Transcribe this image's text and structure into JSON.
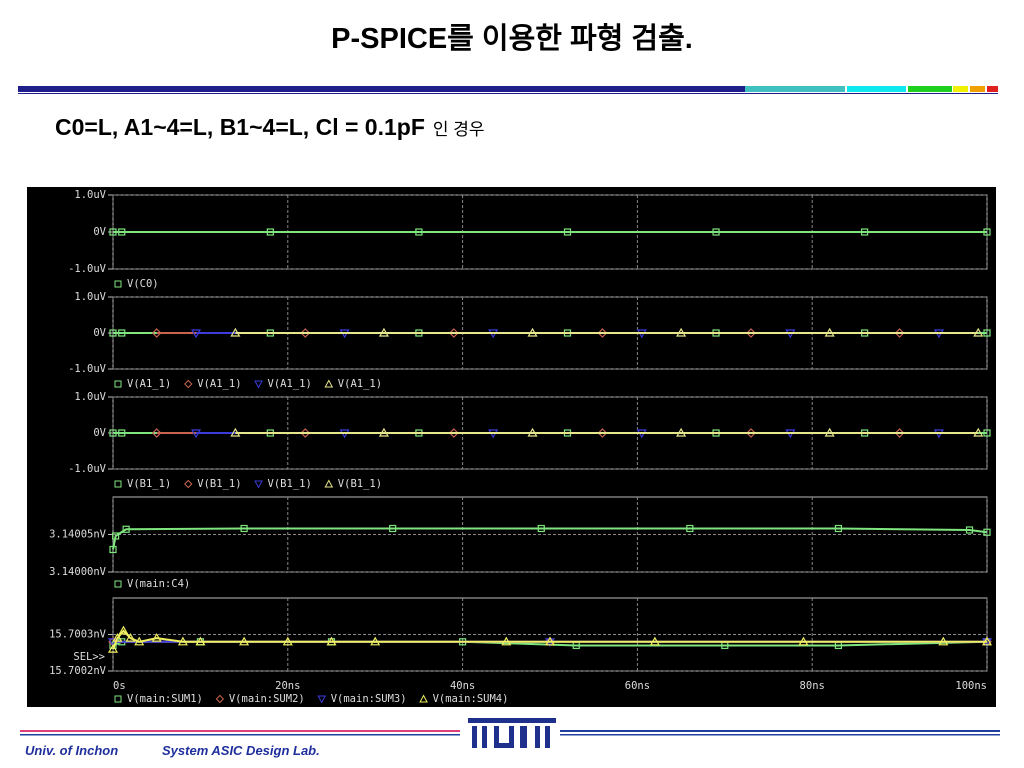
{
  "slide": {
    "title": "P-SPICE를 이용한 파형 검출.",
    "subtitle": "C0=L, A1~4=L, B1~4=L, Cl = 0.1pF",
    "subtitle_suffix": "인 경우",
    "footer_left": "Univ. of Inchon",
    "footer_right": "System ASIC Design Lab.",
    "select_label": "SEL>>"
  },
  "chart_data": [
    {
      "type": "line",
      "xlim": [
        0,
        100
      ],
      "xticks": [
        0,
        20,
        40,
        60,
        80,
        100
      ],
      "ylim": [
        -1e-06,
        1e-06
      ],
      "yticks": [
        {
          "value": 1e-06,
          "label": "1.0uV"
        },
        {
          "value": 0,
          "label": "0V"
        },
        {
          "value": -1e-06,
          "label": "-1.0uV"
        }
      ],
      "grid": true,
      "series": [
        {
          "name": "V(C0)",
          "color": "#7fe67f",
          "x": [
            0,
            1,
            18,
            35,
            52,
            69,
            86,
            100
          ],
          "values": [
            0,
            0,
            0,
            0,
            0,
            0,
            0,
            0
          ]
        }
      ]
    },
    {
      "type": "line",
      "xlim": [
        0,
        100
      ],
      "xticks": [
        0,
        20,
        40,
        60,
        80,
        100
      ],
      "ylim": [
        -1e-06,
        1e-06
      ],
      "yticks": [
        {
          "value": 1e-06,
          "label": "1.0uV"
        },
        {
          "value": 0,
          "label": "0V"
        },
        {
          "value": -1e-06,
          "label": "-1.0uV"
        }
      ],
      "grid": true,
      "series": [
        {
          "name": "V(A1_1)",
          "color": "#7fe67f",
          "x": [
            0,
            1,
            18,
            35,
            52,
            69,
            86,
            100
          ],
          "values": [
            0,
            0,
            0,
            0,
            0,
            0,
            0,
            0
          ]
        },
        {
          "name": "V(A1_1)",
          "color": "#c86450",
          "x": [
            5,
            22,
            39,
            56,
            73,
            90
          ],
          "values": [
            0,
            0,
            0,
            0,
            0,
            0
          ]
        },
        {
          "name": "V(A1_1)",
          "color": "#3c3cdc",
          "x": [
            9.5,
            26.5,
            43.5,
            60.5,
            77.5,
            94.5
          ],
          "values": [
            0,
            0,
            0,
            0,
            0,
            0
          ]
        },
        {
          "name": "V(A1_1)",
          "color": "#e6e68c",
          "x": [
            14,
            31,
            48,
            65,
            82,
            99
          ],
          "values": [
            0,
            0,
            0,
            0,
            0,
            0
          ]
        }
      ]
    },
    {
      "type": "line",
      "xlim": [
        0,
        100
      ],
      "xticks": [
        0,
        20,
        40,
        60,
        80,
        100
      ],
      "ylim": [
        -1e-06,
        1e-06
      ],
      "yticks": [
        {
          "value": 1e-06,
          "label": "1.0uV"
        },
        {
          "value": 0,
          "label": "0V"
        },
        {
          "value": -1e-06,
          "label": "-1.0uV"
        }
      ],
      "grid": true,
      "series": [
        {
          "name": "V(B1_1)",
          "color": "#7fe67f",
          "x": [
            0,
            1,
            18,
            35,
            52,
            69,
            86,
            100
          ],
          "values": [
            0,
            0,
            0,
            0,
            0,
            0,
            0,
            0
          ]
        },
        {
          "name": "V(B1_1)",
          "color": "#c86450",
          "x": [
            5,
            22,
            39,
            56,
            73,
            90
          ],
          "values": [
            0,
            0,
            0,
            0,
            0,
            0
          ]
        },
        {
          "name": "V(B1_1)",
          "color": "#3c3cdc",
          "x": [
            9.5,
            26.5,
            43.5,
            60.5,
            77.5,
            94.5
          ],
          "values": [
            0,
            0,
            0,
            0,
            0,
            0
          ]
        },
        {
          "name": "V(B1_1)",
          "color": "#e6e68c",
          "x": [
            14,
            31,
            48,
            65,
            82,
            99
          ],
          "values": [
            0,
            0,
            0,
            0,
            0,
            0
          ]
        }
      ]
    },
    {
      "type": "line",
      "xlim": [
        0,
        100
      ],
      "xticks": [
        0,
        20,
        40,
        60,
        80,
        100
      ],
      "ylim": [
        3.14,
        3.1401
      ],
      "yticks": [
        {
          "value": 3.14005,
          "label": "3.14005nV"
        },
        {
          "value": 3.14,
          "label": "3.14000nV"
        }
      ],
      "grid": true,
      "series": [
        {
          "name": "V(main:C4)",
          "color": "#7fe67f",
          "x": [
            0,
            0.3,
            1.5,
            15,
            32,
            49,
            66,
            83,
            98,
            100
          ],
          "values": [
            3.14003,
            3.140048,
            3.140057,
            3.140058,
            3.140058,
            3.140058,
            3.140058,
            3.140058,
            3.140056,
            3.140053
          ]
        }
      ]
    },
    {
      "type": "line",
      "xlim": [
        0,
        100
      ],
      "xticks": [
        {
          "value": 0,
          "label": "0s"
        },
        {
          "value": 20,
          "label": "20ns"
        },
        {
          "value": 40,
          "label": "40ns"
        },
        {
          "value": 60,
          "label": "60ns"
        },
        {
          "value": 80,
          "label": "80ns"
        },
        {
          "value": 100,
          "label": "100ns"
        }
      ],
      "ylim": [
        15.7002,
        15.7004
      ],
      "yticks": [
        {
          "value": 15.7003,
          "label": "15.7003nV"
        },
        {
          "value": 15.7002,
          "label": "15.7002nV"
        }
      ],
      "grid": true,
      "series": [
        {
          "name": "V(main:SUM1)",
          "color": "#7fe67f",
          "x": [
            0,
            1,
            10,
            25,
            40,
            53,
            70,
            83,
            100
          ],
          "values": [
            15.70027,
            15.70028,
            15.70028,
            15.70028,
            15.70028,
            15.70027,
            15.70027,
            15.70027,
            15.70028
          ]
        },
        {
          "name": "V(main:SUM2)",
          "color": "#c86450",
          "x": [
            0,
            50,
            100
          ],
          "values": [
            15.70028,
            15.70028,
            15.70028
          ]
        },
        {
          "name": "V(main:SUM3)",
          "color": "#3c3cdc",
          "x": [
            0,
            50,
            100
          ],
          "values": [
            15.70028,
            15.70028,
            15.70028
          ]
        },
        {
          "name": "V(main:SUM4)",
          "color": "#f0f060",
          "x": [
            0,
            0.5,
            1.2,
            2,
            3,
            5,
            8,
            10,
            15,
            20,
            25,
            30,
            45,
            50,
            62,
            79,
            95,
            100
          ],
          "values": [
            15.70026,
            15.70029,
            15.70031,
            15.70029,
            15.70028,
            15.70029,
            15.70028,
            15.70028,
            15.70028,
            15.70028,
            15.70028,
            15.70028,
            15.70028,
            15.70028,
            15.70028,
            15.70028,
            15.70028,
            15.70028
          ]
        }
      ]
    }
  ]
}
